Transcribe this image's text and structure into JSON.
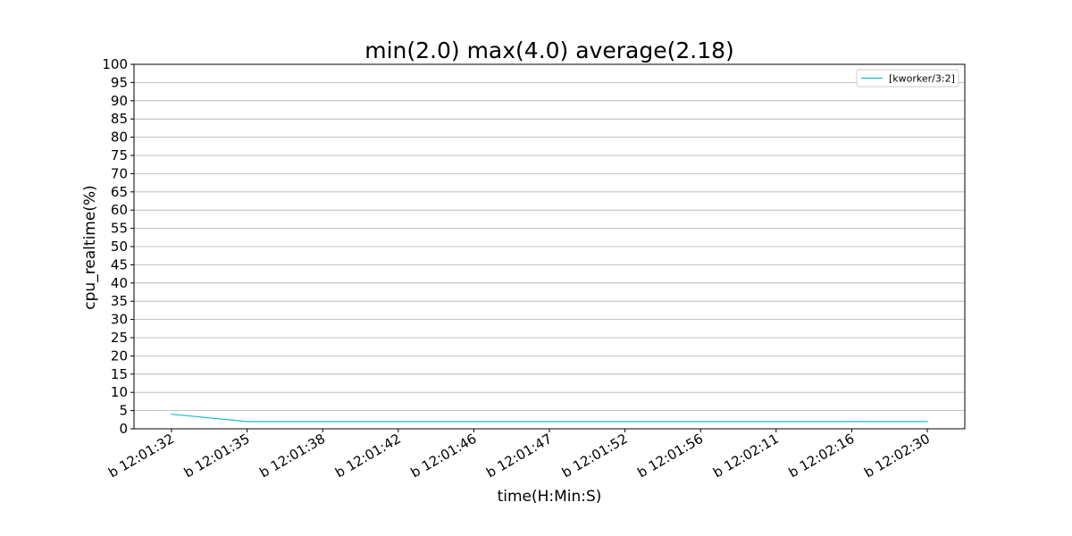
{
  "chart_data": {
    "type": "line",
    "title": "min(2.0) max(4.0) average(2.18)",
    "xlabel": "time(H:Min:S)",
    "ylabel": "cpu_realtime(%)",
    "categories": [
      "b 12:01:32",
      "b 12:01:35",
      "b 12:01:38",
      "b 12:01:42",
      "b 12:01:46",
      "b 12:01:47",
      "b 12:01:52",
      "b 12:01:56",
      "b 12:02:11",
      "b 12:02:16",
      "b 12:02:30"
    ],
    "series": [
      {
        "name": "[kworker/3:2]",
        "color": "#17becf",
        "values": [
          4.0,
          2.0,
          2.0,
          2.0,
          2.0,
          2.0,
          2.0,
          2.0,
          2.0,
          2.0,
          2.0
        ]
      }
    ],
    "ylim": [
      0,
      100
    ],
    "yticks": [
      0,
      5,
      10,
      15,
      20,
      25,
      30,
      35,
      40,
      45,
      50,
      55,
      60,
      65,
      70,
      75,
      80,
      85,
      90,
      95,
      100
    ],
    "grid": "horizontal",
    "legend_position": "top-right"
  }
}
